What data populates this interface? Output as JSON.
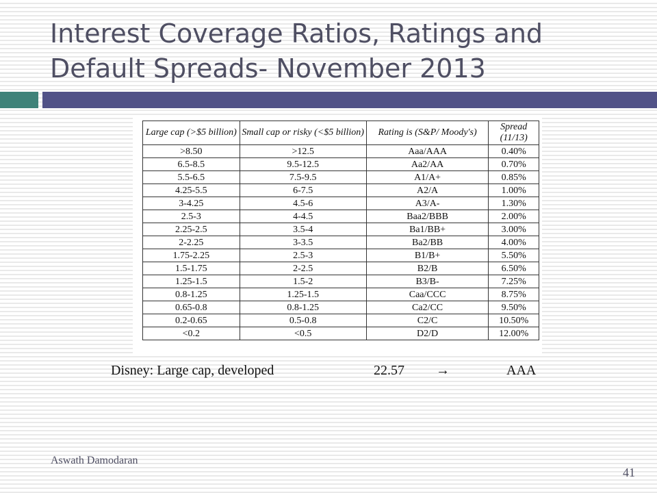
{
  "title": {
    "line1": "Interest Coverage Ratios, Ratings and",
    "line2": "Default Spreads- November 2013"
  },
  "colors": {
    "title_text": "#4f4f63",
    "accent_bar_left": "#3f8279",
    "accent_bar_right": "#515287"
  },
  "table": {
    "headers": [
      "Large cap (>$5 billion)",
      "Small cap or risky (<$5 billion)",
      "Rating is (S&P/ Moody's)",
      "Spread (11/13)"
    ],
    "rows": [
      [
        ">8.50",
        ">12.5",
        "Aaa/AAA",
        "0.40%"
      ],
      [
        "6.5-8.5",
        "9.5-12.5",
        "Aa2/AA",
        "0.70%"
      ],
      [
        "5.5-6.5",
        "7.5-9.5",
        "A1/A+",
        "0.85%"
      ],
      [
        "4.25-5.5",
        "6-7.5",
        "A2/A",
        "1.00%"
      ],
      [
        "3-4.25",
        "4.5-6",
        "A3/A-",
        "1.30%"
      ],
      [
        "2.5-3",
        "4-4.5",
        "Baa2/BBB",
        "2.00%"
      ],
      [
        "2.25-2.5",
        "3.5-4",
        "Ba1/BB+",
        "3.00%"
      ],
      [
        "2-2.25",
        "3-3.5",
        "Ba2/BB",
        "4.00%"
      ],
      [
        "1.75-2.25",
        "2.5-3",
        "B1/B+",
        "5.50%"
      ],
      [
        "1.5-1.75",
        "2-2.5",
        "B2/B",
        "6.50%"
      ],
      [
        "1.25-1.5",
        "1.5-2",
        "B3/B-",
        "7.25%"
      ],
      [
        "0.8-1.25",
        "1.25-1.5",
        "Caa/CCC",
        "8.75%"
      ],
      [
        "0.65-0.8",
        "0.8-1.25",
        "Ca2/CC",
        "9.50%"
      ],
      [
        "0.2-0.65",
        "0.5-0.8",
        "C2/C",
        "10.50%"
      ],
      [
        "<0.2",
        "<0.5",
        "D2/D",
        "12.00%"
      ]
    ]
  },
  "disney": {
    "label": "Disney: Large cap, developed",
    "value": "22.57",
    "arrow": "→",
    "rating": "AAA"
  },
  "footer": {
    "author": "Aswath Damodaran",
    "page": "41"
  }
}
